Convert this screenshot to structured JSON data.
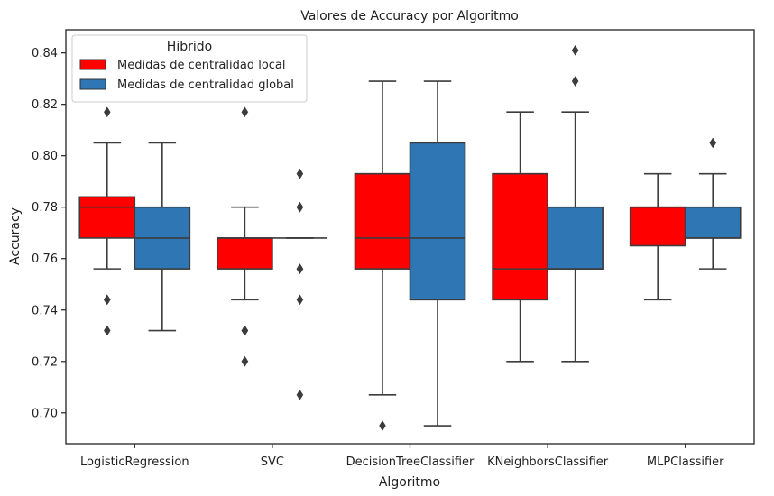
{
  "chart_data": {
    "type": "boxplot",
    "title": "Valores de Accuracy por Algoritmo",
    "xlabel": "Algoritmo",
    "ylabel": "Accuracy",
    "ylim": [
      0.688,
      0.849
    ],
    "yticks": [
      "0.70",
      "0.72",
      "0.74",
      "0.76",
      "0.78",
      "0.80",
      "0.82",
      "0.84"
    ],
    "categories": [
      "LogisticRegression",
      "SVC",
      "DecisionTreeClassifier",
      "KNeighborsClassifier",
      "MLPClassifier"
    ],
    "legend": {
      "title": "Hibrido",
      "position": "top-left",
      "entries": [
        "Medidas de centralidad local",
        "Medidas de centralidad global"
      ]
    },
    "series": [
      {
        "name": "Medidas de centralidad local",
        "color": "#ff0000",
        "boxes": [
          {
            "whisker_low": 0.756,
            "q1": 0.768,
            "median": 0.78,
            "q3": 0.784,
            "whisker_high": 0.805,
            "outliers": [
              0.817,
              0.744,
              0.744,
              0.732
            ]
          },
          {
            "whisker_low": 0.744,
            "q1": 0.756,
            "median": 0.768,
            "q3": 0.768,
            "whisker_high": 0.78,
            "outliers": [
              0.817,
              0.732,
              0.732,
              0.72,
              0.72
            ]
          },
          {
            "whisker_low": 0.707,
            "q1": 0.756,
            "median": 0.768,
            "q3": 0.793,
            "whisker_high": 0.829,
            "outliers": [
              0.695
            ]
          },
          {
            "whisker_low": 0.72,
            "q1": 0.744,
            "median": 0.756,
            "q3": 0.793,
            "whisker_high": 0.817,
            "outliers": []
          },
          {
            "whisker_low": 0.744,
            "q1": 0.765,
            "median": 0.78,
            "q3": 0.78,
            "whisker_high": 0.793,
            "outliers": []
          }
        ]
      },
      {
        "name": "Medidas de centralidad global",
        "color": "#2f77b4",
        "boxes": [
          {
            "whisker_low": 0.732,
            "q1": 0.756,
            "median": 0.768,
            "q3": 0.78,
            "whisker_high": 0.805,
            "outliers": []
          },
          {
            "whisker_low": 0.768,
            "q1": 0.768,
            "median": 0.768,
            "q3": 0.768,
            "whisker_high": 0.768,
            "outliers": [
              0.793,
              0.78,
              0.78,
              0.756,
              0.756,
              0.744,
              0.707
            ]
          },
          {
            "whisker_low": 0.695,
            "q1": 0.744,
            "median": 0.768,
            "q3": 0.805,
            "whisker_high": 0.829,
            "outliers": []
          },
          {
            "whisker_low": 0.72,
            "q1": 0.756,
            "median": 0.756,
            "q3": 0.78,
            "whisker_high": 0.817,
            "outliers": [
              0.841,
              0.829
            ]
          },
          {
            "whisker_low": 0.756,
            "q1": 0.768,
            "median": 0.768,
            "q3": 0.78,
            "whisker_high": 0.793,
            "outliers": [
              0.805
            ]
          }
        ]
      }
    ],
    "grid": false
  }
}
